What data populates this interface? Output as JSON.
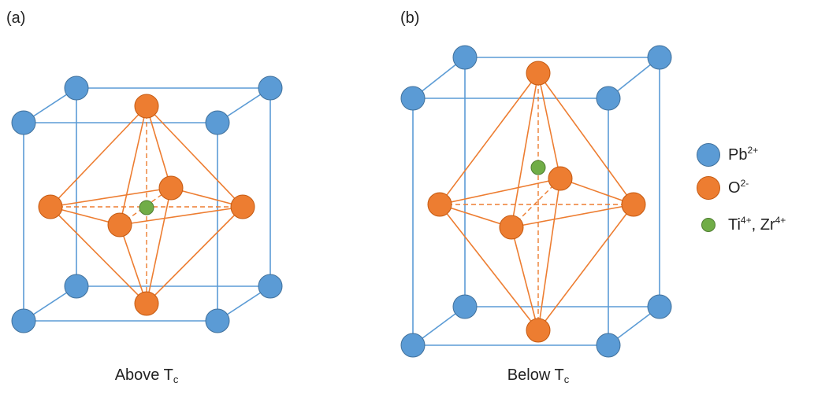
{
  "panels": [
    {
      "label": "(a)",
      "caption_main": "Above T",
      "caption_sub": "c"
    },
    {
      "label": "(b)",
      "caption_main": "Below T",
      "caption_sub": "c"
    }
  ],
  "legend": [
    {
      "symbol": "Pb",
      "charge": "2+",
      "extra": "",
      "extra_charge": "",
      "color": "#5B9BD5",
      "size": "large"
    },
    {
      "symbol": "O",
      "charge": "2-",
      "extra": "",
      "extra_charge": "",
      "color": "#ED7D31",
      "size": "large"
    },
    {
      "symbol": "Ti",
      "charge": "4+",
      "extra": ", Zr",
      "extra_charge": "4+",
      "color": "#70AD47",
      "size": "small"
    }
  ],
  "colors": {
    "lead": "#5B9BD5",
    "lead_stroke": "#41719C",
    "oxygen": "#ED7D31",
    "oxygen_stroke": "#C55A11",
    "cation": "#70AD47",
    "cation_stroke": "#507E32",
    "cell_edge": "#5B9BD5",
    "octa_edge": "#ED7D31"
  }
}
